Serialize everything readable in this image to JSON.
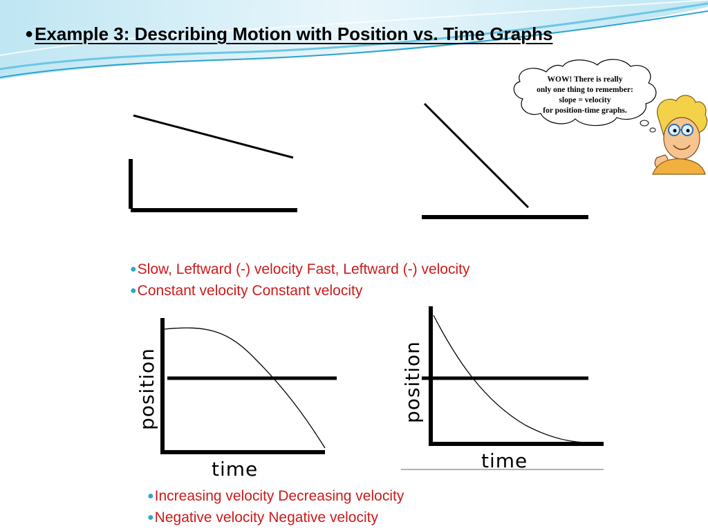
{
  "slide": {
    "title": "Example 3: Describing Motion with Position vs. Time Graphs",
    "bullet_symbol": "●"
  },
  "thought_bubble": {
    "lines": [
      "WOW!  There is really",
      "only one thing to remember:",
      "slope = velocity",
      "for position-time graphs."
    ]
  },
  "top_graph_captions": {
    "line1": "Slow, Leftward (-) velocity Fast, Leftward (-) velocity",
    "line2": "Constant velocity Constant velocity"
  },
  "bottom_graphs": {
    "ylabel": "position",
    "xlabel": "time"
  },
  "bottom_graph_captions": {
    "line1": "Increasing velocity Decreasing velocity",
    "line2": "Negative velocity Negative velocity"
  },
  "colors": {
    "caption_text": "#cc1a1a",
    "bullet": "#2fa8c6",
    "wave_light": "#bfe6f3",
    "wave_mid": "#6cc6e3",
    "wave_dark": "#2aa3cf"
  }
}
